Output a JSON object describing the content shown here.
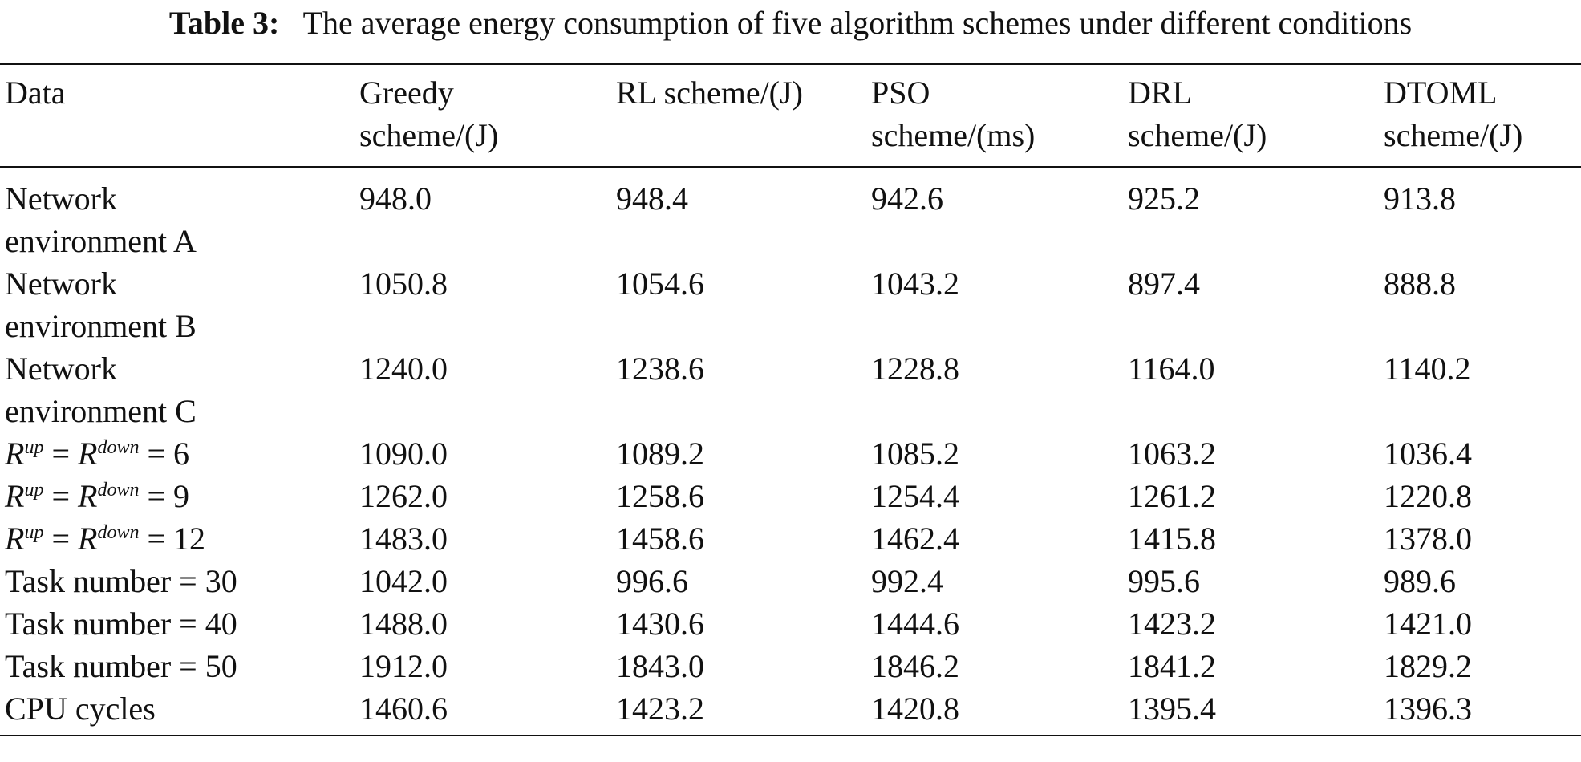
{
  "caption": {
    "label": "Table 3:",
    "text": "The average energy consumption of five algorithm schemes under different conditions"
  },
  "table": {
    "headers": [
      [
        "Data",
        ""
      ],
      [
        "Greedy",
        "scheme/(J)"
      ],
      [
        "RL scheme/(J)",
        ""
      ],
      [
        "PSO",
        "scheme/(ms)"
      ],
      [
        "DRL",
        "scheme/(J)"
      ],
      [
        "DTOML",
        "scheme/(J)"
      ]
    ],
    "rows": [
      {
        "label": [
          "Network",
          "environment A"
        ],
        "values": [
          "948.0",
          "948.4",
          "942.6",
          "925.2",
          "913.8"
        ]
      },
      {
        "label": [
          "Network",
          "environment B"
        ],
        "values": [
          "1050.8",
          "1054.6",
          "1043.2",
          "897.4",
          "888.8"
        ]
      },
      {
        "label": [
          "Network",
          "environment C"
        ],
        "values": [
          "1240.0",
          "1238.6",
          "1228.8",
          "1164.0",
          "1140.2"
        ]
      },
      {
        "math": {
          "sym1": "R",
          "sup1": "up",
          "op": " = ",
          "sym2": "R",
          "sup2": "down",
          "rest": " = 6"
        },
        "values": [
          "1090.0",
          "1089.2",
          "1085.2",
          "1063.2",
          "1036.4"
        ]
      },
      {
        "math": {
          "sym1": "R",
          "sup1": "up",
          "op": " = ",
          "sym2": "R",
          "sup2": "down",
          "rest": " = 9"
        },
        "values": [
          "1262.0",
          "1258.6",
          "1254.4",
          "1261.2",
          "1220.8"
        ]
      },
      {
        "math": {
          "sym1": "R",
          "sup1": "up",
          "op": " = ",
          "sym2": "R",
          "sup2": "down",
          "rest": " = 12"
        },
        "values": [
          "1483.0",
          "1458.6",
          "1462.4",
          "1415.8",
          "1378.0"
        ]
      },
      {
        "label": [
          "Task number = 30"
        ],
        "values": [
          "1042.0",
          "996.6",
          "992.4",
          "995.6",
          "989.6"
        ]
      },
      {
        "label": [
          "Task number = 40"
        ],
        "values": [
          "1488.0",
          "1430.6",
          "1444.6",
          "1423.2",
          "1421.0"
        ]
      },
      {
        "label": [
          "Task number = 50"
        ],
        "values": [
          "1912.0",
          "1843.0",
          "1846.2",
          "1841.2",
          "1829.2"
        ]
      },
      {
        "label": [
          "CPU cycles"
        ],
        "values": [
          "1460.6",
          "1423.2",
          "1420.8",
          "1395.4",
          "1396.3"
        ]
      }
    ]
  }
}
